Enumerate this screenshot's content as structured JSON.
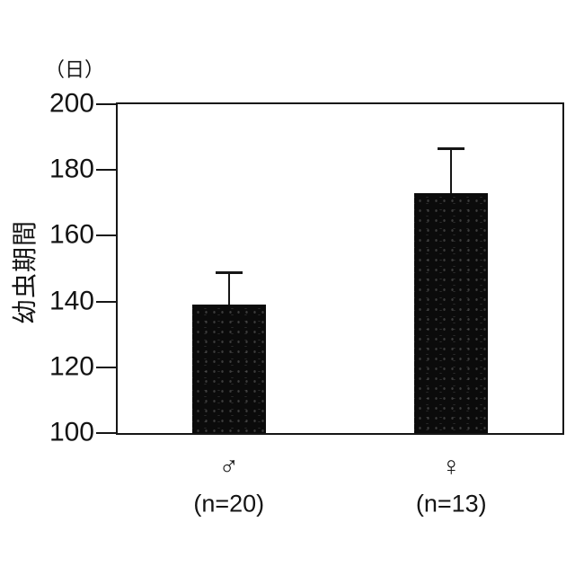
{
  "chart_data": {
    "type": "bar",
    "unit_label": "（日）",
    "ylabel": "幼虫期間",
    "categories": [
      "♂",
      "♀"
    ],
    "category_sublabels": [
      "(n=20)",
      "(n=13)"
    ],
    "values": [
      139,
      173
    ],
    "error_upper_values": [
      149,
      186.5
    ],
    "ylim": [
      100,
      200
    ],
    "yticks": [
      100,
      120,
      140,
      160,
      180,
      200
    ],
    "grid": false,
    "legend_position": "none",
    "bar_color": "#0b0b0b",
    "axis_color": "#161616"
  }
}
